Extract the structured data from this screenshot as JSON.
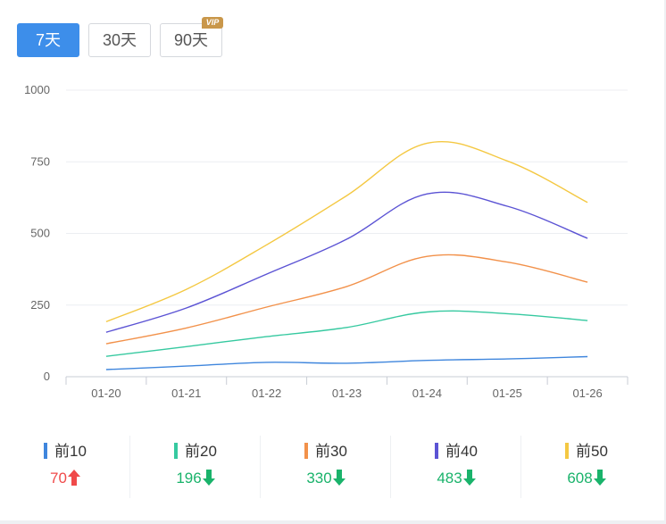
{
  "colors": {
    "accent": "#3d8eea",
    "up": "#f04a4a",
    "down": "#1ab36b",
    "series": [
      "#3f86dd",
      "#36c9a0",
      "#f2914a",
      "#5b53d4",
      "#f4c842"
    ]
  },
  "tabs": [
    {
      "label": "7天",
      "active": true
    },
    {
      "label": "30天",
      "active": false
    },
    {
      "label": "90天",
      "active": false,
      "badge": "VIP"
    }
  ],
  "chart_data": {
    "type": "line",
    "categories": [
      "01-20",
      "01-21",
      "01-22",
      "01-23",
      "01-24",
      "01-25",
      "01-26"
    ],
    "y_ticks": [
      "1000",
      "750",
      "500",
      "250",
      "0"
    ],
    "ylim": [
      0,
      1000
    ],
    "grid": true,
    "series": [
      {
        "name": "前10",
        "values": [
          25,
          37,
          50,
          47,
          57,
          62,
          70
        ]
      },
      {
        "name": "前20",
        "values": [
          71,
          105,
          140,
          172,
          226,
          220,
          196
        ]
      },
      {
        "name": "前30",
        "values": [
          115,
          170,
          243,
          315,
          420,
          400,
          330
        ]
      },
      {
        "name": "前40",
        "values": [
          155,
          240,
          358,
          480,
          638,
          595,
          483
        ]
      },
      {
        "name": "前50",
        "values": [
          192,
          305,
          460,
          632,
          815,
          753,
          608
        ]
      }
    ]
  },
  "stats": [
    {
      "label": "前10",
      "value": "70",
      "trend": "up"
    },
    {
      "label": "前20",
      "value": "196",
      "trend": "down"
    },
    {
      "label": "前30",
      "value": "330",
      "trend": "down"
    },
    {
      "label": "前40",
      "value": "483",
      "trend": "down"
    },
    {
      "label": "前50",
      "value": "608",
      "trend": "down"
    }
  ]
}
